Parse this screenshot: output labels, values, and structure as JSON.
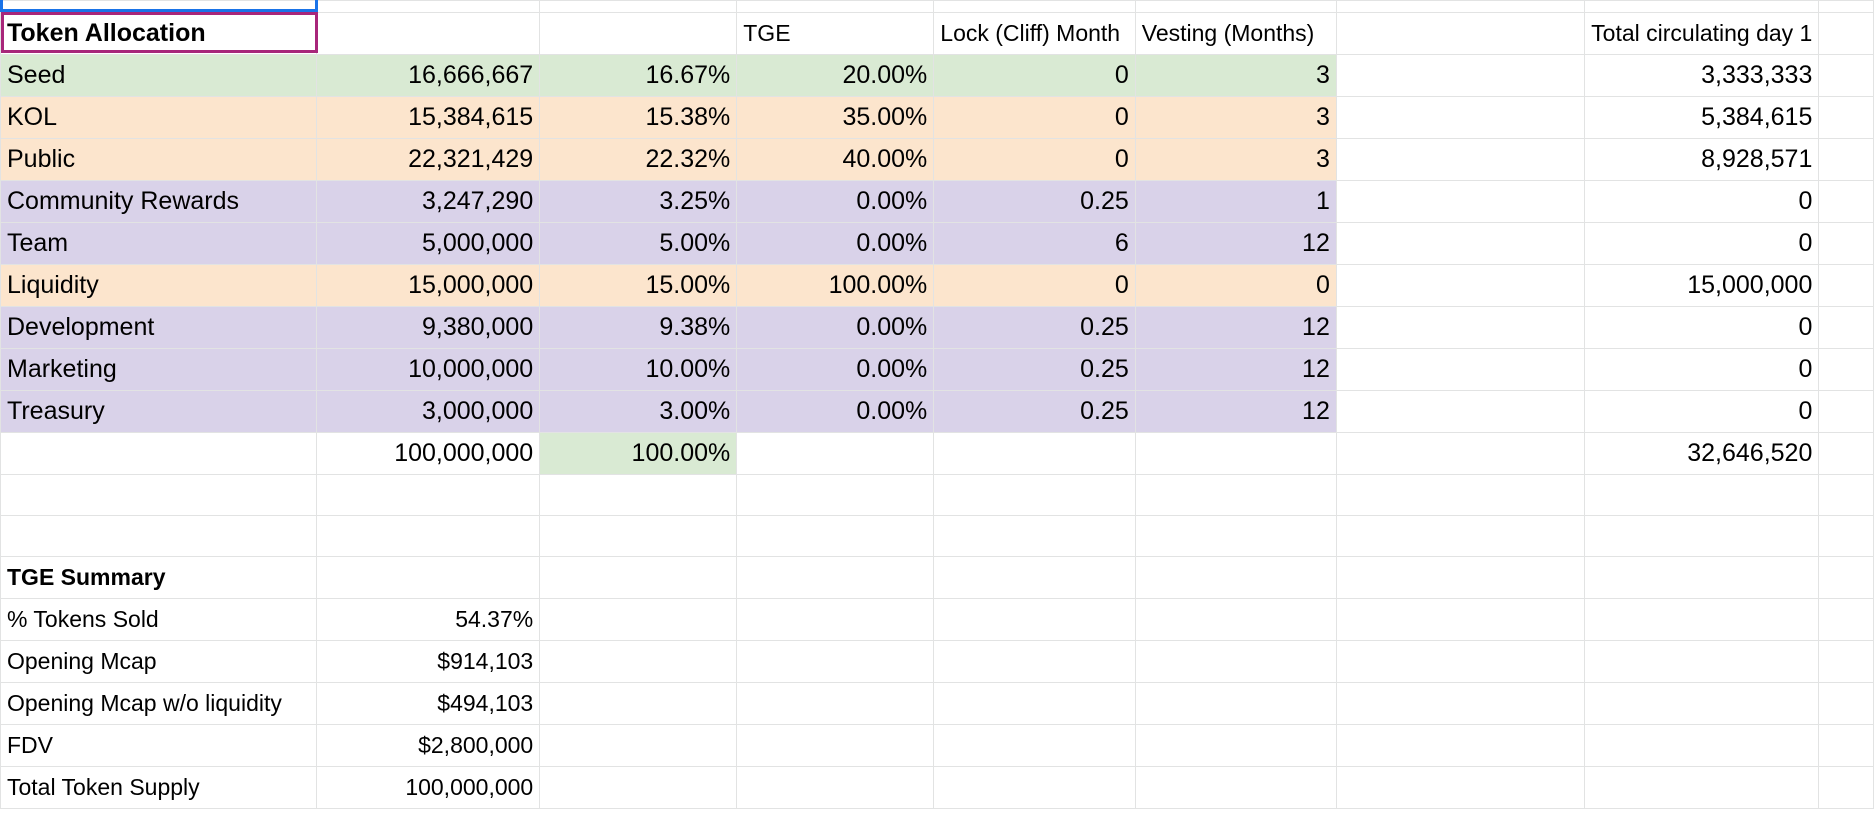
{
  "header": {
    "title": "Token Allocation",
    "tge": "TGE",
    "lock": "Lock (Cliff) Month",
    "vesting": "Vesting (Months)",
    "circ": "Total circulating day 1"
  },
  "rows": [
    {
      "name": "Seed",
      "amount": "16,666,667",
      "pct": "16.67%",
      "tge": "20.00%",
      "lock": "0",
      "vesting": "3",
      "circ": "3,333,333"
    },
    {
      "name": "KOL",
      "amount": "15,384,615",
      "pct": "15.38%",
      "tge": "35.00%",
      "lock": "0",
      "vesting": "3",
      "circ": "5,384,615"
    },
    {
      "name": "Public",
      "amount": "22,321,429",
      "pct": "22.32%",
      "tge": "40.00%",
      "lock": "0",
      "vesting": "3",
      "circ": "8,928,571"
    },
    {
      "name": "Community Rewards",
      "amount": "3,247,290",
      "pct": "3.25%",
      "tge": "0.00%",
      "lock": "0.25",
      "vesting": "1",
      "circ": "0"
    },
    {
      "name": "Team",
      "amount": "5,000,000",
      "pct": "5.00%",
      "tge": "0.00%",
      "lock": "6",
      "vesting": "12",
      "circ": "0"
    },
    {
      "name": "Liquidity",
      "amount": "15,000,000",
      "pct": "15.00%",
      "tge": "100.00%",
      "lock": "0",
      "vesting": "0",
      "circ": "15,000,000"
    },
    {
      "name": "Development",
      "amount": "9,380,000",
      "pct": "9.38%",
      "tge": "0.00%",
      "lock": "0.25",
      "vesting": "12",
      "circ": "0"
    },
    {
      "name": "Marketing",
      "amount": "10,000,000",
      "pct": "10.00%",
      "tge": "0.00%",
      "lock": "0.25",
      "vesting": "12",
      "circ": "0"
    },
    {
      "name": "Treasury",
      "amount": "3,000,000",
      "pct": "3.00%",
      "tge": "0.00%",
      "lock": "0.25",
      "vesting": "12",
      "circ": "0"
    }
  ],
  "totals": {
    "amount": "100,000,000",
    "pct": "100.00%",
    "circ": "32,646,520"
  },
  "summary": {
    "title": "TGE Summary",
    "items": [
      {
        "label": "% Tokens Sold",
        "value": "54.37%"
      },
      {
        "label": "Opening Mcap",
        "value": "$914,103"
      },
      {
        "label": "Opening Mcap w/o liquidity",
        "value": "$494,103"
      },
      {
        "label": "FDV",
        "value": "$2,800,000"
      },
      {
        "label": "Total Token Supply",
        "value": "100,000,000"
      }
    ]
  },
  "colors": {
    "green": "#d9ead3",
    "orange": "#fce5cd",
    "purple": "#d9d2e9",
    "selection_blue": "#1a73e8",
    "selection_magenta": "#a8267a"
  }
}
